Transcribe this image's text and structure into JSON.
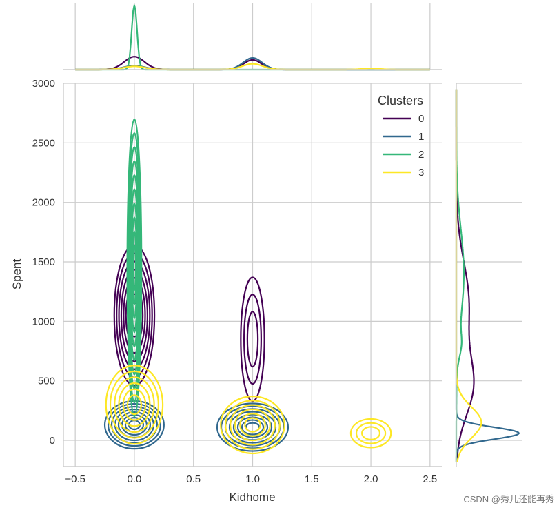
{
  "chart_data": {
    "type": "kde-joint",
    "xlabel": "Kidhome",
    "ylabel": "Spent",
    "xlim": [
      -0.6,
      2.6
    ],
    "ylim": [
      -220,
      3000
    ],
    "xticks": [
      -0.5,
      0.0,
      0.5,
      1.0,
      1.5,
      2.0,
      2.5
    ],
    "xtick_labels": [
      "−0.5",
      "0.0",
      "0.5",
      "1.0",
      "1.5",
      "2.0",
      "2.5"
    ],
    "yticks": [
      0,
      500,
      1000,
      1500,
      2000,
      2500,
      3000
    ],
    "ytick_labels": [
      "0",
      "500",
      "1000",
      "1500",
      "2000",
      "2500",
      "3000"
    ],
    "grid": true,
    "legend": {
      "title": "Clusters",
      "position": "top-right",
      "entries": [
        "0",
        "1",
        "2",
        "3"
      ]
    },
    "series": [
      {
        "name": "0",
        "color": "#440154",
        "modes": [
          {
            "x": 0.0,
            "y": 1050,
            "sx": 0.17,
            "sy": 590,
            "rings": 8
          },
          {
            "x": 1.0,
            "y": 850,
            "sx": 0.1,
            "sy": 520,
            "rings": 3
          }
        ],
        "marginal_x": [
          {
            "x": 0.0,
            "h": 0.2,
            "w": 0.17
          },
          {
            "x": 1.0,
            "h": 0.15,
            "w": 0.15
          }
        ],
        "marginal_y": [
          {
            "y": 450,
            "h": 0.25,
            "w": 500
          },
          {
            "y": 1150,
            "h": 0.2,
            "w": 700
          }
        ]
      },
      {
        "name": "1",
        "color": "#31688e",
        "modes": [
          {
            "x": 0.0,
            "y": 130,
            "sx": 0.25,
            "sy": 200,
            "rings": 8
          },
          {
            "x": 1.0,
            "y": 110,
            "sx": 0.3,
            "sy": 200,
            "rings": 8
          }
        ],
        "marginal_x": [
          {
            "x": 0.0,
            "h": 0.06,
            "w": 0.18
          },
          {
            "x": 1.0,
            "h": 0.18,
            "w": 0.16
          }
        ],
        "marginal_y": [
          {
            "y": 60,
            "h": 1.0,
            "w": 100
          }
        ]
      },
      {
        "name": "2",
        "color": "#35b779",
        "modes": [
          {
            "x": 0.0,
            "y": 1450,
            "sx": 0.06,
            "sy": 1250,
            "rings": 10
          }
        ],
        "marginal_x": [
          {
            "x": 0.0,
            "h": 1.0,
            "w": 0.045
          }
        ],
        "marginal_y": [
          {
            "y": 1400,
            "h": 0.12,
            "w": 750
          },
          {
            "y": 800,
            "h": 0.05,
            "w": 200
          }
        ]
      },
      {
        "name": "3",
        "color": "#fde725",
        "modes": [
          {
            "x": 0.0,
            "y": 300,
            "sx": 0.24,
            "sy": 330,
            "rings": 6
          },
          {
            "x": 1.0,
            "y": 130,
            "sx": 0.27,
            "sy": 240,
            "rings": 6
          },
          {
            "x": 2.0,
            "y": 60,
            "sx": 0.17,
            "sy": 120,
            "rings": 3
          }
        ],
        "marginal_x": [
          {
            "x": 0.0,
            "h": 0.05,
            "w": 0.18
          },
          {
            "x": 1.0,
            "h": 0.09,
            "w": 0.17
          },
          {
            "x": 2.0,
            "h": 0.02,
            "w": 0.15
          }
        ],
        "marginal_y": [
          {
            "y": 150,
            "h": 0.4,
            "w": 260
          }
        ]
      }
    ]
  },
  "watermark": "CSDN @秀儿还能再秀"
}
